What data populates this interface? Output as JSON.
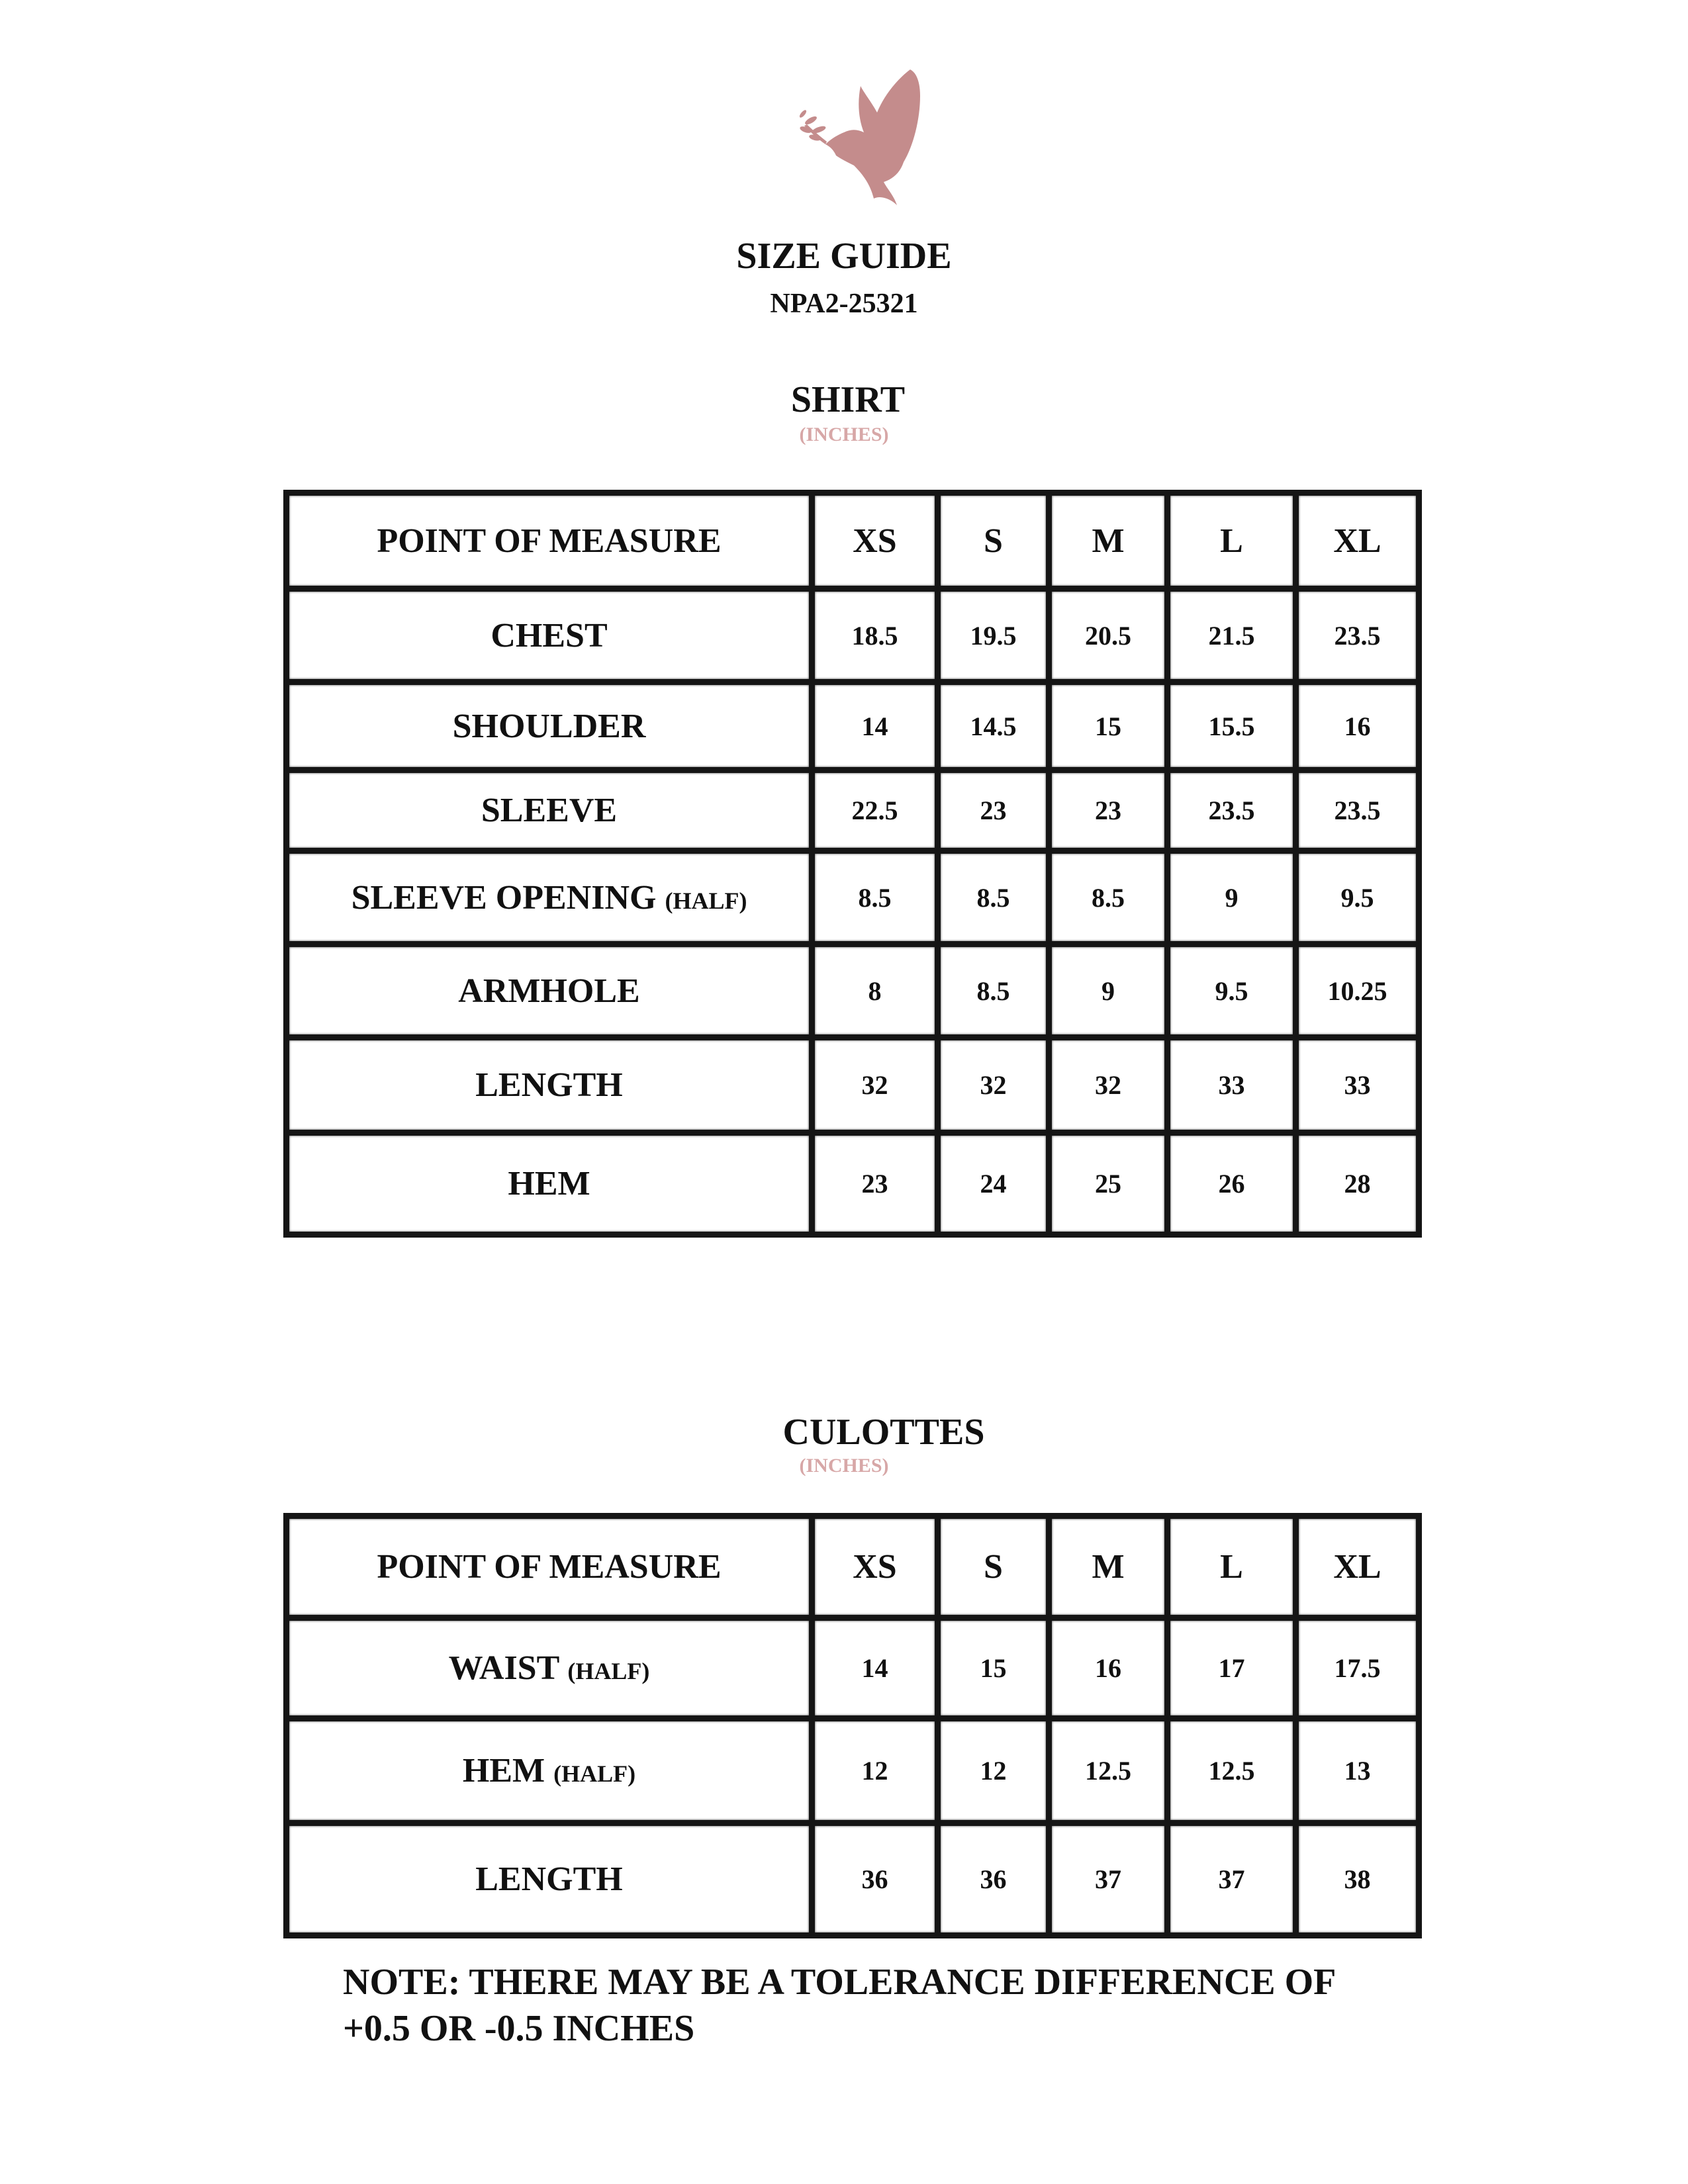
{
  "header": {
    "logo": "dove-logo",
    "logo_color": "#c48c8c",
    "title": "SIZE GUIDE",
    "code": "NPA2-25321"
  },
  "sizes": [
    "XS",
    "S",
    "M",
    "L",
    "XL"
  ],
  "shirt": {
    "title": "SHIRT",
    "units": "(INCHES)",
    "header_label": "POINT OF MEASURE",
    "rows": [
      {
        "label": "CHEST",
        "qualifier": "",
        "values": [
          "18.5",
          "19.5",
          "20.5",
          "21.5",
          "23.5"
        ]
      },
      {
        "label": "SHOULDER",
        "qualifier": "",
        "values": [
          "14",
          "14.5",
          "15",
          "15.5",
          "16"
        ]
      },
      {
        "label": "SLEEVE",
        "qualifier": "",
        "values": [
          "22.5",
          "23",
          "23",
          "23.5",
          "23.5"
        ]
      },
      {
        "label": "SLEEVE OPENING",
        "qualifier": "(HALF)",
        "values": [
          "8.5",
          "8.5",
          "8.5",
          "9",
          "9.5"
        ]
      },
      {
        "label": "ARMHOLE",
        "qualifier": "",
        "values": [
          "8",
          "8.5",
          "9",
          "9.5",
          "10.25"
        ]
      },
      {
        "label": "LENGTH",
        "qualifier": "",
        "values": [
          "32",
          "32",
          "32",
          "33",
          "33"
        ]
      },
      {
        "label": "HEM",
        "qualifier": "",
        "values": [
          "23",
          "24",
          "25",
          "26",
          "28"
        ]
      }
    ]
  },
  "culottes": {
    "title": "CULOTTES",
    "units": "(INCHES)",
    "header_label": "POINT OF MEASURE",
    "rows": [
      {
        "label": "WAIST",
        "qualifier": "(HALF)",
        "values": [
          "14",
          "15",
          "16",
          "17",
          "17.5"
        ]
      },
      {
        "label": "HEM",
        "qualifier": "(HALF)",
        "values": [
          "12",
          "12",
          "12.5",
          "12.5",
          "13"
        ]
      },
      {
        "label": "LENGTH",
        "qualifier": "",
        "values": [
          "36",
          "36",
          "37",
          "37",
          "38"
        ]
      }
    ]
  },
  "note": {
    "line1": "NOTE: THERE MAY BE A TOLERANCE DIFFERENCE OF",
    "line2": "+0.5 OR -0.5 INCHES"
  }
}
